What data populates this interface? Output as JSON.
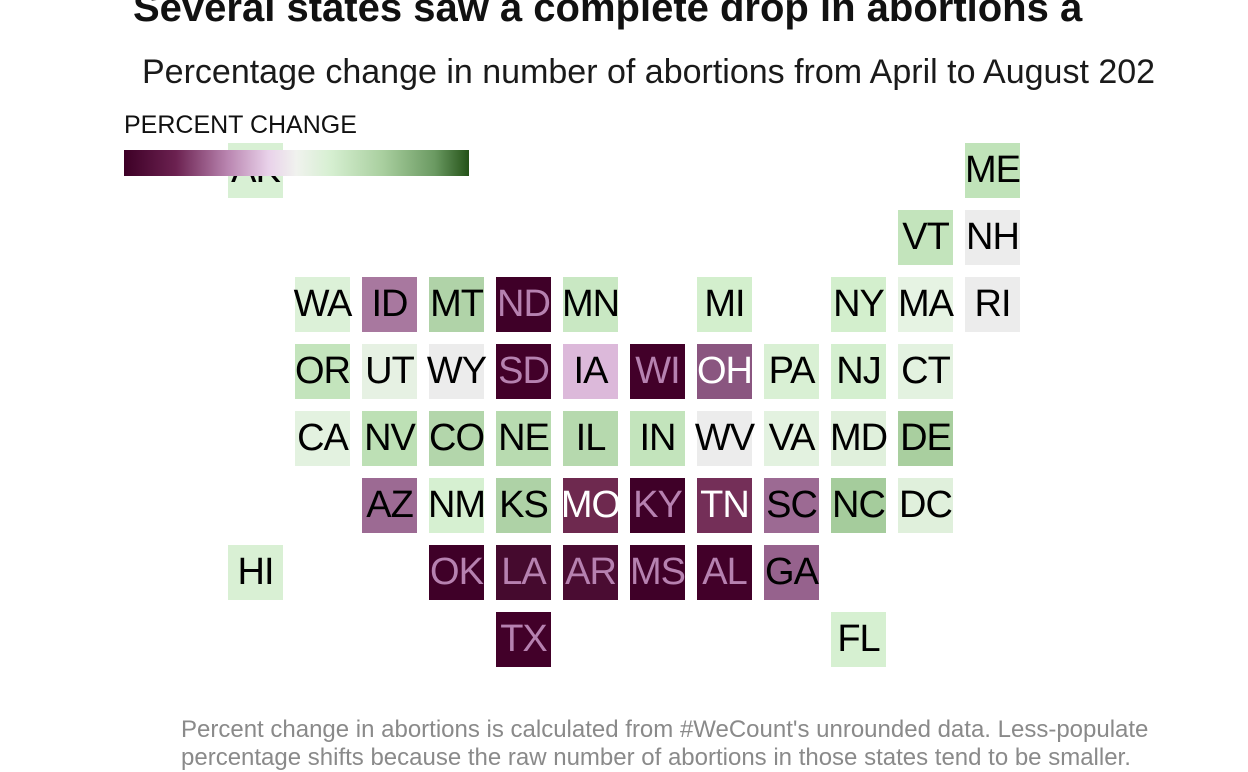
{
  "header": {
    "title": "Several states saw a complete drop in abortions a",
    "subtitle": "Percentage change in number of abortions from April to August 202"
  },
  "legend": {
    "label": "PERCENT CHANGE",
    "gradient_colors": [
      "#3d0026",
      "#b985b0",
      "#f0f2ee",
      "#a9cf9f",
      "#245218"
    ]
  },
  "footnote": {
    "line1": "Percent change in abortions is calculated from #WeCount's unrounded data. Less-populate",
    "line2": "percentage shifts because the raw number of abortions in those states tend to be smaller."
  },
  "chart_data": {
    "type": "heatmap",
    "title": "Several states saw a complete drop in abortions a",
    "subtitle": "Percentage change in number of abortions from April to August 202",
    "legend_title": "PERCENT CHANGE",
    "states": [
      {
        "abbr": "AK",
        "row": 0,
        "col": 0,
        "color": "#d8f0d4"
      },
      {
        "abbr": "ME",
        "row": 0,
        "col": 11,
        "color": "#c0e3b9"
      },
      {
        "abbr": "VT",
        "row": 1,
        "col": 10,
        "color": "#c3e4bc"
      },
      {
        "abbr": "NH",
        "row": 1,
        "col": 11,
        "color": "#ececec"
      },
      {
        "abbr": "WA",
        "row": 2,
        "col": 1,
        "color": "#dcf1d8"
      },
      {
        "abbr": "ID",
        "row": 2,
        "col": 2,
        "color": "#a8789f"
      },
      {
        "abbr": "MT",
        "row": 2,
        "col": 3,
        "color": "#b0d3a8"
      },
      {
        "abbr": "ND",
        "row": 2,
        "col": 4,
        "color": "#3f0028",
        "tone": "dark"
      },
      {
        "abbr": "MN",
        "row": 2,
        "col": 5,
        "color": "#c9e8c3"
      },
      {
        "abbr": "MI",
        "row": 2,
        "col": 7,
        "color": "#d3efcd"
      },
      {
        "abbr": "NY",
        "row": 2,
        "col": 9,
        "color": "#d3efcd"
      },
      {
        "abbr": "MA",
        "row": 2,
        "col": 10,
        "color": "#e6f3e3"
      },
      {
        "abbr": "RI",
        "row": 2,
        "col": 11,
        "color": "#ececec"
      },
      {
        "abbr": "OR",
        "row": 3,
        "col": 1,
        "color": "#c3e4bc"
      },
      {
        "abbr": "UT",
        "row": 3,
        "col": 2,
        "color": "#e6f1e3"
      },
      {
        "abbr": "WY",
        "row": 3,
        "col": 3,
        "color": "#ececec"
      },
      {
        "abbr": "SD",
        "row": 3,
        "col": 4,
        "color": "#420029",
        "tone": "dark"
      },
      {
        "abbr": "IA",
        "row": 3,
        "col": 5,
        "color": "#dcb9da"
      },
      {
        "abbr": "WI",
        "row": 3,
        "col": 6,
        "color": "#420029",
        "tone": "dark"
      },
      {
        "abbr": "OH",
        "row": 3,
        "col": 7,
        "color": "#8a5680",
        "tone": "mid"
      },
      {
        "abbr": "PA",
        "row": 3,
        "col": 8,
        "color": "#d9f0d4"
      },
      {
        "abbr": "NJ",
        "row": 3,
        "col": 9,
        "color": "#d4efcf"
      },
      {
        "abbr": "CT",
        "row": 3,
        "col": 10,
        "color": "#e3f2e0"
      },
      {
        "abbr": "CA",
        "row": 4,
        "col": 1,
        "color": "#e3f2e0"
      },
      {
        "abbr": "NV",
        "row": 4,
        "col": 2,
        "color": "#bde0b5"
      },
      {
        "abbr": "CO",
        "row": 4,
        "col": 3,
        "color": "#b3d6ab"
      },
      {
        "abbr": "NE",
        "row": 4,
        "col": 4,
        "color": "#b8dbb0"
      },
      {
        "abbr": "IL",
        "row": 4,
        "col": 5,
        "color": "#b6d9ae"
      },
      {
        "abbr": "IN",
        "row": 4,
        "col": 6,
        "color": "#c3e4bc"
      },
      {
        "abbr": "WV",
        "row": 4,
        "col": 7,
        "color": "#ececec"
      },
      {
        "abbr": "VA",
        "row": 4,
        "col": 8,
        "color": "#e3f2e0"
      },
      {
        "abbr": "MD",
        "row": 4,
        "col": 9,
        "color": "#e0f0dc"
      },
      {
        "abbr": "DE",
        "row": 4,
        "col": 10,
        "color": "#a9cf9f"
      },
      {
        "abbr": "AZ",
        "row": 5,
        "col": 2,
        "color": "#9c6a93"
      },
      {
        "abbr": "NM",
        "row": 5,
        "col": 3,
        "color": "#d6f0d1"
      },
      {
        "abbr": "KS",
        "row": 5,
        "col": 4,
        "color": "#aed2a6"
      },
      {
        "abbr": "MO",
        "row": 5,
        "col": 5,
        "color": "#6e294f",
        "tone": "mid"
      },
      {
        "abbr": "KY",
        "row": 5,
        "col": 6,
        "color": "#3f0028",
        "tone": "dark"
      },
      {
        "abbr": "TN",
        "row": 5,
        "col": 7,
        "color": "#742f58",
        "tone": "mid"
      },
      {
        "abbr": "SC",
        "row": 5,
        "col": 8,
        "color": "#9c6a93"
      },
      {
        "abbr": "NC",
        "row": 5,
        "col": 9,
        "color": "#a5cc9c"
      },
      {
        "abbr": "DC",
        "row": 5,
        "col": 10,
        "color": "#e0f0dc"
      },
      {
        "abbr": "HI",
        "row": 6,
        "col": 0,
        "color": "#d9f0d4"
      },
      {
        "abbr": "OK",
        "row": 6,
        "col": 3,
        "color": "#3f0028",
        "tone": "dark"
      },
      {
        "abbr": "LA",
        "row": 6,
        "col": 4,
        "color": "#450a2e",
        "tone": "dark"
      },
      {
        "abbr": "AR",
        "row": 6,
        "col": 5,
        "color": "#4a0c32",
        "tone": "dark"
      },
      {
        "abbr": "MS",
        "row": 6,
        "col": 6,
        "color": "#3f0028",
        "tone": "dark"
      },
      {
        "abbr": "AL",
        "row": 6,
        "col": 7,
        "color": "#420029",
        "tone": "dark"
      },
      {
        "abbr": "GA",
        "row": 6,
        "col": 8,
        "color": "#96628d"
      },
      {
        "abbr": "TX",
        "row": 7,
        "col": 4,
        "color": "#420029",
        "tone": "dark"
      },
      {
        "abbr": "FL",
        "row": 7,
        "col": 9,
        "color": "#d6f0d1"
      }
    ]
  }
}
